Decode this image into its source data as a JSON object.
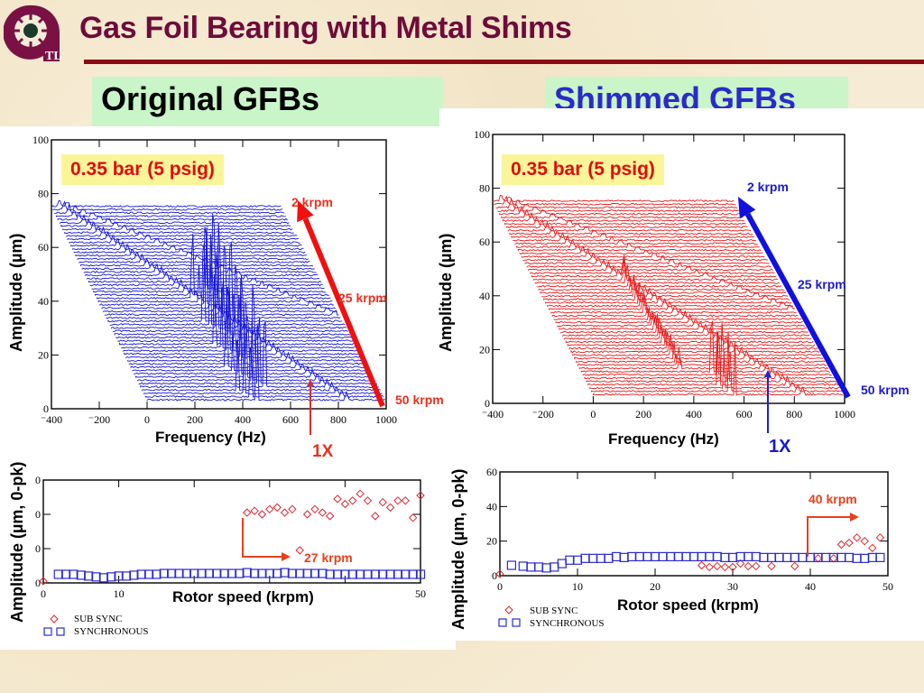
{
  "header": {
    "title": "Gas Foil Bearing with Metal Shims",
    "logo": "tl-logo-icon"
  },
  "panels": {
    "left": {
      "title": "Original GFBs",
      "badge": "0.35 bar (5 psig)"
    },
    "right": {
      "title": "Shimmed GFBs",
      "badge": "0.35 bar (5 psig)"
    }
  },
  "colors": {
    "title": "#6e0b3a",
    "rule": "#8b0a13",
    "left_waterfall": "#1515d8",
    "right_waterfall": "#e81818",
    "sub_sync": "#d8262e",
    "synchronous": "#2b2bd0",
    "badge_bg": "#fbf59a",
    "panel_title_bg": "#c9f5c9"
  },
  "chart_data": [
    {
      "id": "waterfall-left",
      "type": "line",
      "subtype": "waterfall",
      "title": "Original GFBs",
      "xlabel": "Frequency (Hz)",
      "ylabel": "Amplitude (µm)",
      "xlim": [
        -400,
        1000
      ],
      "ylim": [
        0,
        100
      ],
      "xticks": [
        "-400",
        "-200",
        "0",
        "200",
        "400",
        "600",
        "800",
        "1000"
      ],
      "yticks": [
        "0",
        "20",
        "40",
        "60",
        "80",
        "100"
      ],
      "speed_range_krpm": [
        2,
        50
      ],
      "annotations": {
        "top": "2 krpm",
        "mid": "25 krpm",
        "bottom": "50 krpm",
        "sync_marker": "1X",
        "pressure": "0.35 bar (5 psig)"
      },
      "note": "Large subsynchronous spikes around 0-200 Hz for speeds above ~27 krpm"
    },
    {
      "id": "waterfall-right",
      "type": "line",
      "subtype": "waterfall",
      "title": "Shimmed GFBs",
      "xlabel": "Frequency (Hz)",
      "ylabel": "Amplitude (µm)",
      "xlim": [
        -400,
        1000
      ],
      "ylim": [
        0,
        100
      ],
      "xticks": [
        "-400",
        "-200",
        "0",
        "200",
        "400",
        "600",
        "800",
        "1000"
      ],
      "yticks": [
        "0",
        "20",
        "40",
        "60",
        "80",
        "100"
      ],
      "speed_range_krpm": [
        2,
        50
      ],
      "annotations": {
        "top": "2 krpm",
        "mid": "25 krpm",
        "bottom": "50 krpm",
        "sync_marker": "1X",
        "pressure": "0.35 bar (5 psig)"
      },
      "note": "Small subsynchronous spikes near 100-150 Hz only at highest speeds"
    },
    {
      "id": "amplitude-left",
      "type": "scatter",
      "xlabel": "Rotor speed (krpm)",
      "ylabel": "Amplitude (µm, 0-pk)",
      "xlim": [
        0,
        50
      ],
      "ylim": [
        0,
        60
      ],
      "xticks": [
        "0",
        "10",
        "",
        "",
        "",
        "50"
      ],
      "yticks": [
        "0",
        "0",
        "0",
        "0"
      ],
      "annotation": "27 krpm",
      "legend": [
        "SUB SYNC",
        "SYNCHRONOUS"
      ],
      "series": [
        {
          "name": "SUB SYNC",
          "marker": "diamond",
          "x": [
            0,
            27,
            28,
            29,
            30,
            31,
            32,
            33,
            34,
            35,
            36,
            37,
            38,
            39,
            40,
            41,
            42,
            43,
            44,
            45,
            46,
            47,
            48,
            49,
            50
          ],
          "y": [
            1,
            41,
            42,
            40,
            43,
            44,
            41,
            43,
            19,
            40,
            43,
            41,
            39,
            49,
            46,
            48,
            52,
            48,
            39,
            47,
            44,
            48,
            48,
            38,
            51
          ]
        },
        {
          "name": "SYNCHRONOUS",
          "marker": "square",
          "x": [
            2,
            3,
            4,
            5,
            6,
            7,
            8,
            9,
            10,
            11,
            12,
            13,
            14,
            15,
            16,
            17,
            18,
            19,
            20,
            21,
            22,
            23,
            24,
            25,
            26,
            27,
            28,
            29,
            30,
            31,
            32,
            33,
            34,
            35,
            36,
            37,
            38,
            39,
            40,
            41,
            42,
            43,
            44,
            45,
            46,
            47,
            48,
            49,
            50
          ],
          "y": [
            5,
            5,
            5,
            4.5,
            4,
            3.5,
            3,
            3.5,
            4,
            4,
            4.5,
            5,
            5,
            5,
            5.5,
            5.5,
            5.5,
            5.5,
            5.5,
            5.5,
            5.5,
            5.5,
            5.5,
            5.5,
            5.5,
            6,
            5.5,
            5.5,
            5.5,
            5.5,
            6,
            5.5,
            5.5,
            5.5,
            5.5,
            5.5,
            5,
            5,
            5,
            5,
            5,
            5,
            5,
            5,
            5,
            5,
            5,
            5,
            5
          ]
        }
      ]
    },
    {
      "id": "amplitude-right",
      "type": "scatter",
      "xlabel": "Rotor speed (krpm)",
      "ylabel": "Amplitude (µm, 0-pk)",
      "xlim": [
        0,
        50
      ],
      "ylim": [
        0,
        60
      ],
      "xticks": [
        "0",
        "10",
        "20",
        "30",
        "40",
        "50"
      ],
      "yticks": [
        "0",
        "20",
        "40",
        "60"
      ],
      "annotation": "40 krpm",
      "legend": [
        "SUB SYNC",
        "SYNCHRONOUS"
      ],
      "series": [
        {
          "name": "SUB SYNC",
          "marker": "diamond",
          "x": [
            0,
            26,
            27,
            28,
            29,
            30,
            31,
            32,
            33,
            35,
            38,
            41,
            43,
            44,
            45,
            46,
            47,
            48,
            49
          ],
          "y": [
            1,
            6,
            5,
            5.5,
            5,
            5,
            7,
            5.5,
            5.5,
            5.5,
            5.5,
            10,
            10,
            18,
            19,
            22,
            20,
            16,
            22
          ]
        },
        {
          "name": "SYNCHRONOUS",
          "marker": "square",
          "x": [
            1.5,
            3,
            4,
            5,
            6,
            7,
            8,
            9,
            10,
            11,
            12,
            13,
            14,
            15,
            16,
            17,
            18,
            19,
            20,
            21,
            22,
            23,
            24,
            25,
            26,
            27,
            28,
            29,
            30,
            31,
            32,
            33,
            34,
            35,
            36,
            37,
            38,
            39,
            40,
            41,
            42,
            43,
            44,
            45,
            46,
            47,
            48,
            49
          ],
          "y": [
            6,
            5.5,
            5,
            5,
            4.5,
            5,
            7,
            9,
            9,
            10,
            10,
            10,
            10,
            11,
            10.5,
            11,
            11,
            11,
            11,
            11,
            11,
            11,
            11,
            11,
            11,
            11,
            11,
            10.5,
            10.5,
            11,
            11,
            11,
            10.5,
            10.5,
            10.5,
            10.5,
            10.5,
            10.5,
            10.5,
            10.5,
            10.5,
            10.5,
            10.5,
            10.5,
            10,
            10,
            10.5,
            10.5
          ]
        }
      ]
    }
  ]
}
